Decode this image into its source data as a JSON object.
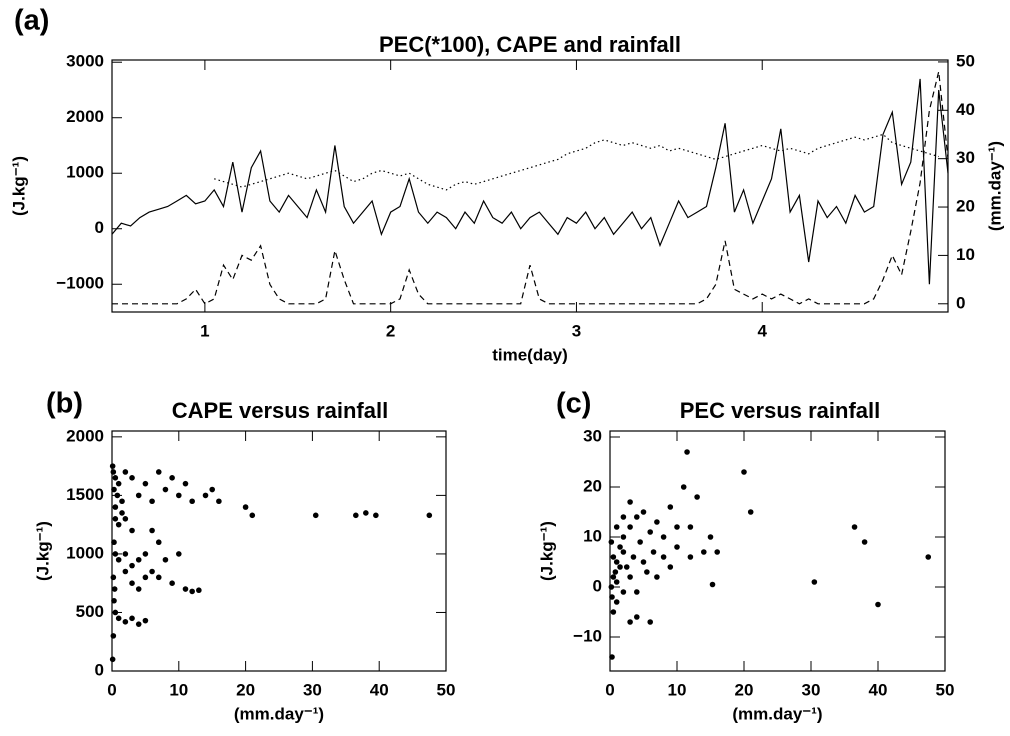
{
  "chart_data": [
    {
      "type": "line",
      "label": "(a)",
      "title": "PEC(*100), CAPE and rainfall",
      "xlabel": "time(day)",
      "ylabel": "(J.kg⁻¹)",
      "y2label": "(mm.day⁻¹)",
      "xlim": [
        0.5,
        5.0
      ],
      "ylim": [
        -1500,
        3040
      ],
      "y2lim": [
        -1.7,
        50.4
      ],
      "xticks": [
        1,
        2,
        3,
        4
      ],
      "yticks": [
        {
          "value": -1000,
          "label": "−1000"
        },
        0,
        1000,
        2000,
        3000
      ],
      "y2ticks": [
        0,
        10,
        20,
        30,
        40,
        50
      ],
      "x": [
        0.5,
        0.55,
        0.6,
        0.65,
        0.7,
        0.75,
        0.8,
        0.85,
        0.9,
        0.95,
        1.0,
        1.05,
        1.1,
        1.15,
        1.2,
        1.25,
        1.3,
        1.35,
        1.4,
        1.45,
        1.5,
        1.55,
        1.6,
        1.65,
        1.7,
        1.75,
        1.8,
        1.85,
        1.9,
        1.95,
        2.0,
        2.05,
        2.1,
        2.15,
        2.2,
        2.25,
        2.3,
        2.35,
        2.4,
        2.45,
        2.5,
        2.55,
        2.6,
        2.65,
        2.7,
        2.75,
        2.8,
        2.85,
        2.9,
        2.95,
        3.0,
        3.05,
        3.1,
        3.15,
        3.2,
        3.25,
        3.3,
        3.35,
        3.4,
        3.45,
        3.5,
        3.55,
        3.6,
        3.65,
        3.7,
        3.75,
        3.8,
        3.85,
        3.9,
        3.95,
        4.0,
        4.05,
        4.1,
        4.15,
        4.2,
        4.25,
        4.3,
        4.35,
        4.4,
        4.45,
        4.5,
        4.55,
        4.6,
        4.65,
        4.7,
        4.75,
        4.8,
        4.85,
        4.9,
        4.95,
        5.0
      ],
      "series": [
        {
          "color": "#000000",
          "style": "solid",
          "values": [
            -100,
            100,
            50,
            200,
            300,
            350,
            400,
            500,
            600,
            450,
            500,
            700,
            400,
            1200,
            300,
            1100,
            1400,
            500,
            300,
            600,
            400,
            200,
            700,
            300,
            1500,
            400,
            100,
            300,
            500,
            -100,
            300,
            400,
            900,
            300,
            100,
            300,
            200,
            0,
            300,
            100,
            500,
            200,
            100,
            300,
            0,
            200,
            300,
            100,
            -100,
            200,
            100,
            300,
            0,
            200,
            -100,
            100,
            300,
            0,
            200,
            -300,
            100,
            500,
            200,
            300,
            400,
            1100,
            1900,
            300,
            700,
            100,
            500,
            900,
            1800,
            300,
            600,
            -600,
            500,
            200,
            400,
            100,
            600,
            300,
            400,
            1700,
            2100,
            800,
            1200,
            2700,
            -1000,
            2500,
            1000
          ]
        },
        {
          "color": "#000000",
          "style": "dotted",
          "values": [
            null,
            null,
            null,
            null,
            null,
            null,
            null,
            null,
            null,
            null,
            null,
            900,
            850,
            800,
            750,
            800,
            850,
            900,
            950,
            1000,
            950,
            900,
            950,
            1000,
            1050,
            950,
            850,
            900,
            1000,
            1050,
            1000,
            950,
            1000,
            900,
            800,
            750,
            700,
            800,
            850,
            800,
            850,
            900,
            950,
            1000,
            1050,
            1100,
            1150,
            1200,
            1250,
            1350,
            1400,
            1450,
            1550,
            1600,
            1550,
            1500,
            1550,
            1500,
            1450,
            1500,
            1400,
            1450,
            1400,
            1350,
            1300,
            1250,
            1300,
            1350,
            1400,
            1450,
            1500,
            1450,
            1400,
            1450,
            1400,
            1350,
            1450,
            1500,
            1550,
            1600,
            1650,
            1600,
            1650,
            1700,
            1550,
            1500,
            1450,
            1400,
            1350,
            1300,
            null
          ]
        },
        {
          "color": "#000000",
          "style": "dashed",
          "axis": "y2",
          "values": [
            0,
            0,
            0,
            0,
            0,
            0,
            0,
            0,
            1,
            3,
            0,
            1,
            8,
            5,
            10,
            9,
            12,
            4,
            1,
            0,
            0,
            0,
            0,
            1,
            11,
            5,
            0,
            0,
            0,
            0,
            0,
            1,
            7,
            2,
            0,
            0,
            0,
            0,
            0,
            0,
            0,
            0,
            0,
            0,
            0,
            8,
            1,
            0,
            0,
            0,
            0,
            0,
            0,
            0,
            0,
            0,
            0,
            0,
            0,
            0,
            0,
            0,
            0,
            0,
            1,
            4,
            13,
            3,
            2,
            1,
            2,
            1,
            2,
            1,
            0,
            1,
            0,
            0,
            0,
            0,
            0,
            0,
            1,
            5,
            10,
            6,
            15,
            25,
            40,
            48,
            30
          ]
        }
      ]
    },
    {
      "type": "scatter",
      "label": "(b)",
      "title": "CAPE versus rainfall",
      "xlabel": "(mm.day⁻¹)",
      "ylabel": "(J.kg⁻¹)",
      "color": "#000000",
      "xlim": [
        0,
        50
      ],
      "ylim": [
        0,
        2050
      ],
      "xticks": [
        0,
        10,
        20,
        30,
        40,
        50
      ],
      "yticks": [
        0,
        500,
        1000,
        1500,
        2000
      ],
      "x": [
        0.2,
        0.5,
        1,
        0.3,
        0.8,
        1.5,
        2,
        3,
        4,
        5,
        6,
        7,
        8,
        9,
        10,
        11,
        12,
        14,
        15,
        16,
        20,
        21,
        30.5,
        36.5,
        38,
        39.5,
        47.5,
        0.5,
        1,
        2,
        3,
        0.3,
        0.5,
        1,
        2,
        3,
        4,
        5,
        6,
        7,
        8,
        9,
        10,
        11,
        12,
        13,
        2,
        3,
        4,
        5,
        0.2,
        0.4,
        0.3,
        0.5,
        1,
        2,
        3,
        4,
        5,
        0.2,
        0.1,
        0.5,
        1.5,
        0.1,
        6,
        7
      ],
      "values": [
        1700,
        1650,
        1600,
        1550,
        1500,
        1450,
        1700,
        1650,
        1500,
        1600,
        1450,
        1700,
        1550,
        1650,
        1500,
        1600,
        1450,
        1500,
        1550,
        1450,
        1400,
        1330,
        1330,
        1330,
        1350,
        1330,
        1330,
        1300,
        1250,
        1300,
        1200,
        1100,
        1000,
        950,
        1000,
        900,
        950,
        1000,
        850,
        800,
        950,
        750,
        1000,
        700,
        680,
        690,
        850,
        750,
        700,
        800,
        800,
        700,
        600,
        500,
        450,
        420,
        450,
        400,
        430,
        300,
        100,
        1400,
        1350,
        1750,
        1200,
        1100
      ]
    },
    {
      "type": "scatter",
      "label": "(c)",
      "title": "PEC versus rainfall",
      "xlabel": "(mm.day⁻¹)",
      "ylabel": "(J.kg⁻¹)",
      "color": "#000000",
      "xlim": [
        0,
        50
      ],
      "ylim": [
        -16.8,
        31.2
      ],
      "xticks": [
        0,
        10,
        20,
        30,
        40,
        50
      ],
      "yticks": [
        {
          "value": -10,
          "label": "−10"
        },
        0,
        10,
        20,
        30
      ],
      "x": [
        0.2,
        0.5,
        1,
        0.3,
        0.8,
        1.5,
        2,
        2.5,
        3,
        3.5,
        4,
        4.5,
        5,
        5.5,
        6,
        6.5,
        7,
        8,
        9,
        10,
        11,
        11.5,
        12,
        13,
        14,
        15,
        15.3,
        16,
        20,
        21,
        30.5,
        36.5,
        38,
        40,
        47.5,
        0.5,
        1,
        3,
        4,
        6,
        0.3,
        2,
        1,
        0.5,
        1.5,
        2,
        3,
        0.2,
        1,
        5,
        7,
        8,
        9,
        10,
        12,
        3,
        4,
        2
      ],
      "values": [
        0,
        2,
        5,
        -2,
        3,
        8,
        10,
        4,
        12,
        6,
        14,
        9,
        15,
        3,
        11,
        7,
        13,
        10,
        16,
        8,
        20,
        27,
        12,
        18,
        7,
        10,
        0.5,
        7,
        23,
        15,
        1,
        12,
        9,
        -3.5,
        6,
        -5,
        -3,
        -7,
        -6,
        -7,
        -14,
        -1,
        1,
        6,
        4,
        7,
        2,
        9,
        12,
        5,
        2,
        6,
        4,
        12,
        6,
        17,
        -1,
        14
      ]
    }
  ]
}
